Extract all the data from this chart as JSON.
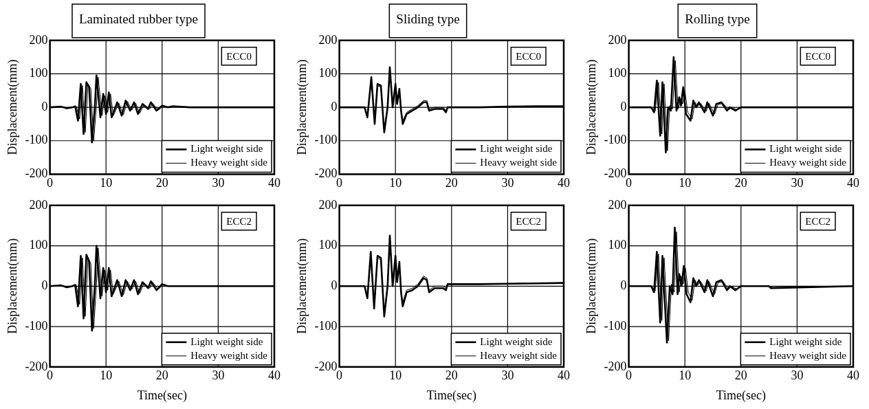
{
  "chart_data": [
    {
      "type": "line",
      "title": "Laminated rubber type",
      "ylabel": "Displacement(mm)",
      "xlim": [
        0,
        40
      ],
      "ylim": [
        -200,
        200
      ],
      "xticks": [
        0,
        10,
        20,
        30,
        40
      ],
      "yticks": [
        -200,
        -100,
        0,
        100,
        200
      ],
      "grid": true,
      "legend": "bottom right",
      "annotations": [
        "ECC0"
      ],
      "series": [
        {
          "name": "Light weight side",
          "color": "#000000",
          "x": [
            0,
            2,
            3,
            4,
            4.5,
            5,
            5.5,
            6,
            6.5,
            7,
            7.5,
            8,
            8.3,
            9,
            9.5,
            10,
            10.5,
            11,
            12,
            12.8,
            13.5,
            14.3,
            15,
            15.7,
            16.5,
            17.5,
            18,
            19,
            20,
            21,
            22,
            25,
            30,
            35,
            40
          ],
          "values": [
            0,
            2,
            -3,
            0,
            3,
            -40,
            70,
            -80,
            75,
            60,
            -105,
            0,
            95,
            -30,
            40,
            -20,
            45,
            -30,
            15,
            -25,
            20,
            -10,
            15,
            -20,
            10,
            -5,
            15,
            -10,
            5,
            0,
            3,
            0,
            0,
            0,
            0
          ]
        },
        {
          "name": "Heavy weight side",
          "color": "#000000",
          "x": [
            0,
            2,
            3,
            4,
            4.7,
            5.3,
            5.8,
            6.3,
            6.8,
            7.3,
            7.8,
            8.3,
            8.6,
            9.3,
            9.8,
            10.3,
            10.8,
            11.3,
            12.3,
            13.1,
            13.8,
            14.6,
            15.3,
            16,
            16.8,
            17.8,
            18.3,
            19.3,
            20.3,
            21,
            22,
            25,
            30,
            35,
            40
          ],
          "values": [
            0,
            2,
            -3,
            0,
            3,
            -35,
            65,
            -75,
            70,
            55,
            -100,
            5,
            90,
            -25,
            35,
            -15,
            40,
            -25,
            12,
            -22,
            18,
            -8,
            12,
            -18,
            8,
            -5,
            12,
            -8,
            5,
            0,
            2,
            0,
            0,
            0,
            0
          ]
        }
      ]
    },
    {
      "type": "line",
      "title": "Sliding type",
      "ylabel": "Displacement(mm)",
      "xlim": [
        0,
        40
      ],
      "ylim": [
        -200,
        200
      ],
      "xticks": [
        0,
        10,
        20,
        30,
        40
      ],
      "yticks": [
        -200,
        -100,
        0,
        100,
        200
      ],
      "grid": true,
      "legend": "bottom right",
      "annotations": [
        "ECC0"
      ],
      "series": [
        {
          "name": "Light weight side",
          "color": "#000000",
          "x": [
            0,
            4.5,
            5,
            5.7,
            6.3,
            6.8,
            7.4,
            8,
            8.6,
            9,
            9.5,
            10,
            10.3,
            10.7,
            11,
            11.3,
            12,
            13,
            14,
            15,
            15.6,
            16,
            17,
            18.5,
            19,
            19.3,
            25,
            30,
            35,
            40
          ],
          "values": [
            0,
            0,
            -30,
            90,
            -50,
            70,
            65,
            -75,
            0,
            120,
            0,
            70,
            10,
            55,
            -10,
            -50,
            -20,
            -10,
            0,
            15,
            15,
            -10,
            -5,
            -5,
            -15,
            0,
            0,
            2,
            3,
            3
          ]
        },
        {
          "name": "Heavy weight side",
          "color": "#000000",
          "x": [
            0,
            4.5,
            5,
            5.7,
            6.3,
            6.8,
            7.4,
            8,
            8.6,
            9,
            9.5,
            10,
            10.3,
            10.7,
            11,
            11.3,
            12,
            13,
            14,
            15,
            15.6,
            16,
            17,
            18.5,
            19,
            19.3,
            25,
            30,
            35,
            40
          ],
          "values": [
            0,
            0,
            -25,
            85,
            -45,
            65,
            60,
            -70,
            5,
            110,
            5,
            65,
            15,
            50,
            -5,
            -40,
            -15,
            -5,
            5,
            20,
            20,
            -5,
            0,
            0,
            -10,
            0,
            0,
            2,
            3,
            3
          ]
        }
      ]
    },
    {
      "type": "line",
      "title": "Rolling type",
      "ylabel": "Displacement(mm)",
      "xlim": [
        0,
        40
      ],
      "ylim": [
        -200,
        200
      ],
      "xticks": [
        0,
        10,
        20,
        30,
        40
      ],
      "yticks": [
        -200,
        -100,
        0,
        100,
        200
      ],
      "grid": true,
      "legend": "bottom right",
      "annotations": [
        "ECC0"
      ],
      "series": [
        {
          "name": "Light weight side",
          "color": "#000000",
          "x": [
            0,
            4,
            4.5,
            5,
            5.6,
            6,
            6.6,
            7,
            7.5,
            8,
            8.5,
            9,
            9.3,
            9.7,
            10.2,
            11,
            11.5,
            12,
            12.5,
            13.5,
            14,
            15,
            15.6,
            16.5,
            17.5,
            18,
            19,
            20,
            25,
            40
          ],
          "values": [
            0,
            0,
            -15,
            80,
            -85,
            75,
            -135,
            0,
            -10,
            150,
            -10,
            30,
            5,
            60,
            -20,
            -40,
            20,
            0,
            15,
            -15,
            15,
            -25,
            10,
            15,
            -10,
            0,
            -10,
            0,
            0,
            0
          ]
        },
        {
          "name": "Heavy weight side",
          "color": "#000000",
          "x": [
            0,
            4,
            4.7,
            5.3,
            5.9,
            6.3,
            6.9,
            7.3,
            7.8,
            8.3,
            8.8,
            9.3,
            9.6,
            10,
            10.5,
            11.3,
            11.8,
            12.3,
            12.8,
            13.8,
            14.3,
            15.3,
            15.9,
            16.8,
            17.8,
            18.3,
            19.3,
            20,
            25,
            40
          ],
          "values": [
            0,
            0,
            -12,
            75,
            -80,
            70,
            -130,
            5,
            -5,
            140,
            -5,
            25,
            10,
            50,
            -15,
            -35,
            15,
            3,
            12,
            -12,
            12,
            -20,
            8,
            12,
            -8,
            0,
            -8,
            0,
            0,
            0
          ]
        }
      ]
    },
    {
      "type": "line",
      "xlabel": "Time(sec)",
      "ylabel": "Displacement(mm)",
      "xlim": [
        0,
        40
      ],
      "ylim": [
        -200,
        200
      ],
      "xticks": [
        0,
        10,
        20,
        30,
        40
      ],
      "yticks": [
        -200,
        -100,
        0,
        100,
        200
      ],
      "grid": true,
      "legend": "bottom right",
      "annotations": [
        "ECC2"
      ],
      "series": [
        {
          "name": "Light weight side",
          "color": "#000000",
          "x": [
            0,
            2,
            3,
            4,
            4.5,
            5,
            5.5,
            6,
            6.5,
            7,
            7.5,
            8,
            8.3,
            9,
            9.5,
            10,
            10.5,
            11,
            12,
            12.8,
            13.5,
            14.3,
            15,
            15.7,
            16.5,
            17.5,
            18,
            19,
            20,
            21,
            25,
            30,
            35,
            40
          ],
          "values": [
            0,
            2,
            -3,
            0,
            3,
            -50,
            75,
            -80,
            78,
            60,
            -110,
            0,
            100,
            -30,
            45,
            -15,
            45,
            -25,
            15,
            -25,
            15,
            -10,
            15,
            -20,
            10,
            -5,
            12,
            -10,
            5,
            0,
            0,
            0,
            0,
            0
          ]
        },
        {
          "name": "Heavy weight side",
          "color": "#000000",
          "x": [
            0,
            2,
            3,
            4,
            4.7,
            5.3,
            5.8,
            6.3,
            6.8,
            7.3,
            7.8,
            8.3,
            8.6,
            9.3,
            9.8,
            10.3,
            10.8,
            11.3,
            12.3,
            13.1,
            13.8,
            14.6,
            15.3,
            16,
            16.8,
            17.8,
            18.3,
            19.3,
            20.3,
            21,
            25,
            30,
            35,
            40
          ],
          "values": [
            0,
            2,
            -3,
            0,
            3,
            -45,
            70,
            -75,
            72,
            55,
            -105,
            5,
            95,
            -25,
            40,
            -10,
            40,
            -20,
            12,
            -22,
            12,
            -8,
            12,
            -18,
            8,
            -5,
            10,
            -8,
            5,
            0,
            0,
            0,
            0,
            0
          ]
        }
      ]
    },
    {
      "type": "line",
      "xlabel": "Time(sec)",
      "ylabel": "Displacement(mm)",
      "xlim": [
        0,
        40
      ],
      "ylim": [
        -200,
        200
      ],
      "xticks": [
        0,
        10,
        20,
        30,
        40
      ],
      "yticks": [
        -200,
        -100,
        0,
        100,
        200
      ],
      "grid": true,
      "legend": "bottom right",
      "annotations": [
        "ECC2"
      ],
      "series": [
        {
          "name": "Light weight side",
          "color": "#000000",
          "x": [
            0,
            4.5,
            5,
            5.6,
            6.2,
            6.8,
            7.4,
            8,
            8.6,
            9,
            9.5,
            10,
            10.3,
            10.7,
            11,
            11.3,
            12,
            13,
            14,
            15,
            15.6,
            16,
            17,
            18.5,
            19,
            19.3,
            25,
            30,
            35,
            40
          ],
          "values": [
            0,
            0,
            -30,
            85,
            -55,
            75,
            70,
            -75,
            0,
            125,
            0,
            75,
            10,
            60,
            -15,
            -50,
            -15,
            -10,
            0,
            20,
            15,
            -15,
            -5,
            -5,
            -10,
            5,
            5,
            6,
            7,
            8
          ]
        },
        {
          "name": "Heavy weight side",
          "color": "#000000",
          "x": [
            0,
            4.5,
            5,
            5.6,
            6.2,
            6.8,
            7.4,
            8,
            8.6,
            9,
            9.5,
            10,
            10.3,
            10.7,
            11,
            11.3,
            12,
            13,
            14,
            15,
            15.6,
            16,
            17,
            18.5,
            19,
            19.3,
            25,
            30,
            35,
            40
          ],
          "values": [
            0,
            0,
            -25,
            80,
            -50,
            70,
            65,
            -70,
            5,
            115,
            5,
            70,
            15,
            55,
            -10,
            -40,
            -10,
            -5,
            5,
            25,
            20,
            -10,
            0,
            0,
            -5,
            5,
            5,
            6,
            7,
            8
          ]
        }
      ]
    },
    {
      "type": "line",
      "xlabel": "Time(sec)",
      "ylabel": "Displacement(mm)",
      "xlim": [
        0,
        40
      ],
      "ylim": [
        -200,
        200
      ],
      "xticks": [
        0,
        10,
        20,
        30,
        40
      ],
      "yticks": [
        -200,
        -100,
        0,
        100,
        200
      ],
      "grid": true,
      "legend": "bottom right",
      "annotations": [
        "ECC2"
      ],
      "series": [
        {
          "name": "Light weight side",
          "color": "#000000",
          "x": [
            0,
            4,
            4.5,
            5,
            5.6,
            6,
            6.8,
            7.3,
            7.8,
            8.2,
            8.7,
            9,
            9.4,
            9.8,
            10.3,
            11,
            11.5,
            12,
            12.5,
            13.5,
            14,
            15,
            15.6,
            16.5,
            17.5,
            18,
            19,
            20,
            25,
            25.3,
            40
          ],
          "values": [
            0,
            0,
            -15,
            85,
            -90,
            75,
            -140,
            0,
            -20,
            145,
            -20,
            30,
            0,
            50,
            -20,
            -40,
            20,
            0,
            15,
            -15,
            15,
            -25,
            10,
            15,
            -10,
            0,
            -10,
            0,
            0,
            -5,
            0
          ]
        },
        {
          "name": "Heavy weight side",
          "color": "#000000",
          "x": [
            0,
            4,
            4.7,
            5.3,
            5.9,
            6.3,
            7.1,
            7.6,
            8.1,
            8.5,
            9,
            9.3,
            9.7,
            10.1,
            10.6,
            11.3,
            11.8,
            12.3,
            12.8,
            13.8,
            14.3,
            15.3,
            15.9,
            16.8,
            17.8,
            18.3,
            19.3,
            20,
            25,
            25.6,
            40
          ],
          "values": [
            0,
            0,
            -12,
            80,
            -85,
            70,
            -135,
            5,
            -15,
            135,
            -15,
            25,
            5,
            45,
            -15,
            -35,
            15,
            3,
            12,
            -12,
            12,
            -20,
            8,
            12,
            -8,
            0,
            -8,
            0,
            0,
            -3,
            0
          ]
        }
      ]
    }
  ]
}
